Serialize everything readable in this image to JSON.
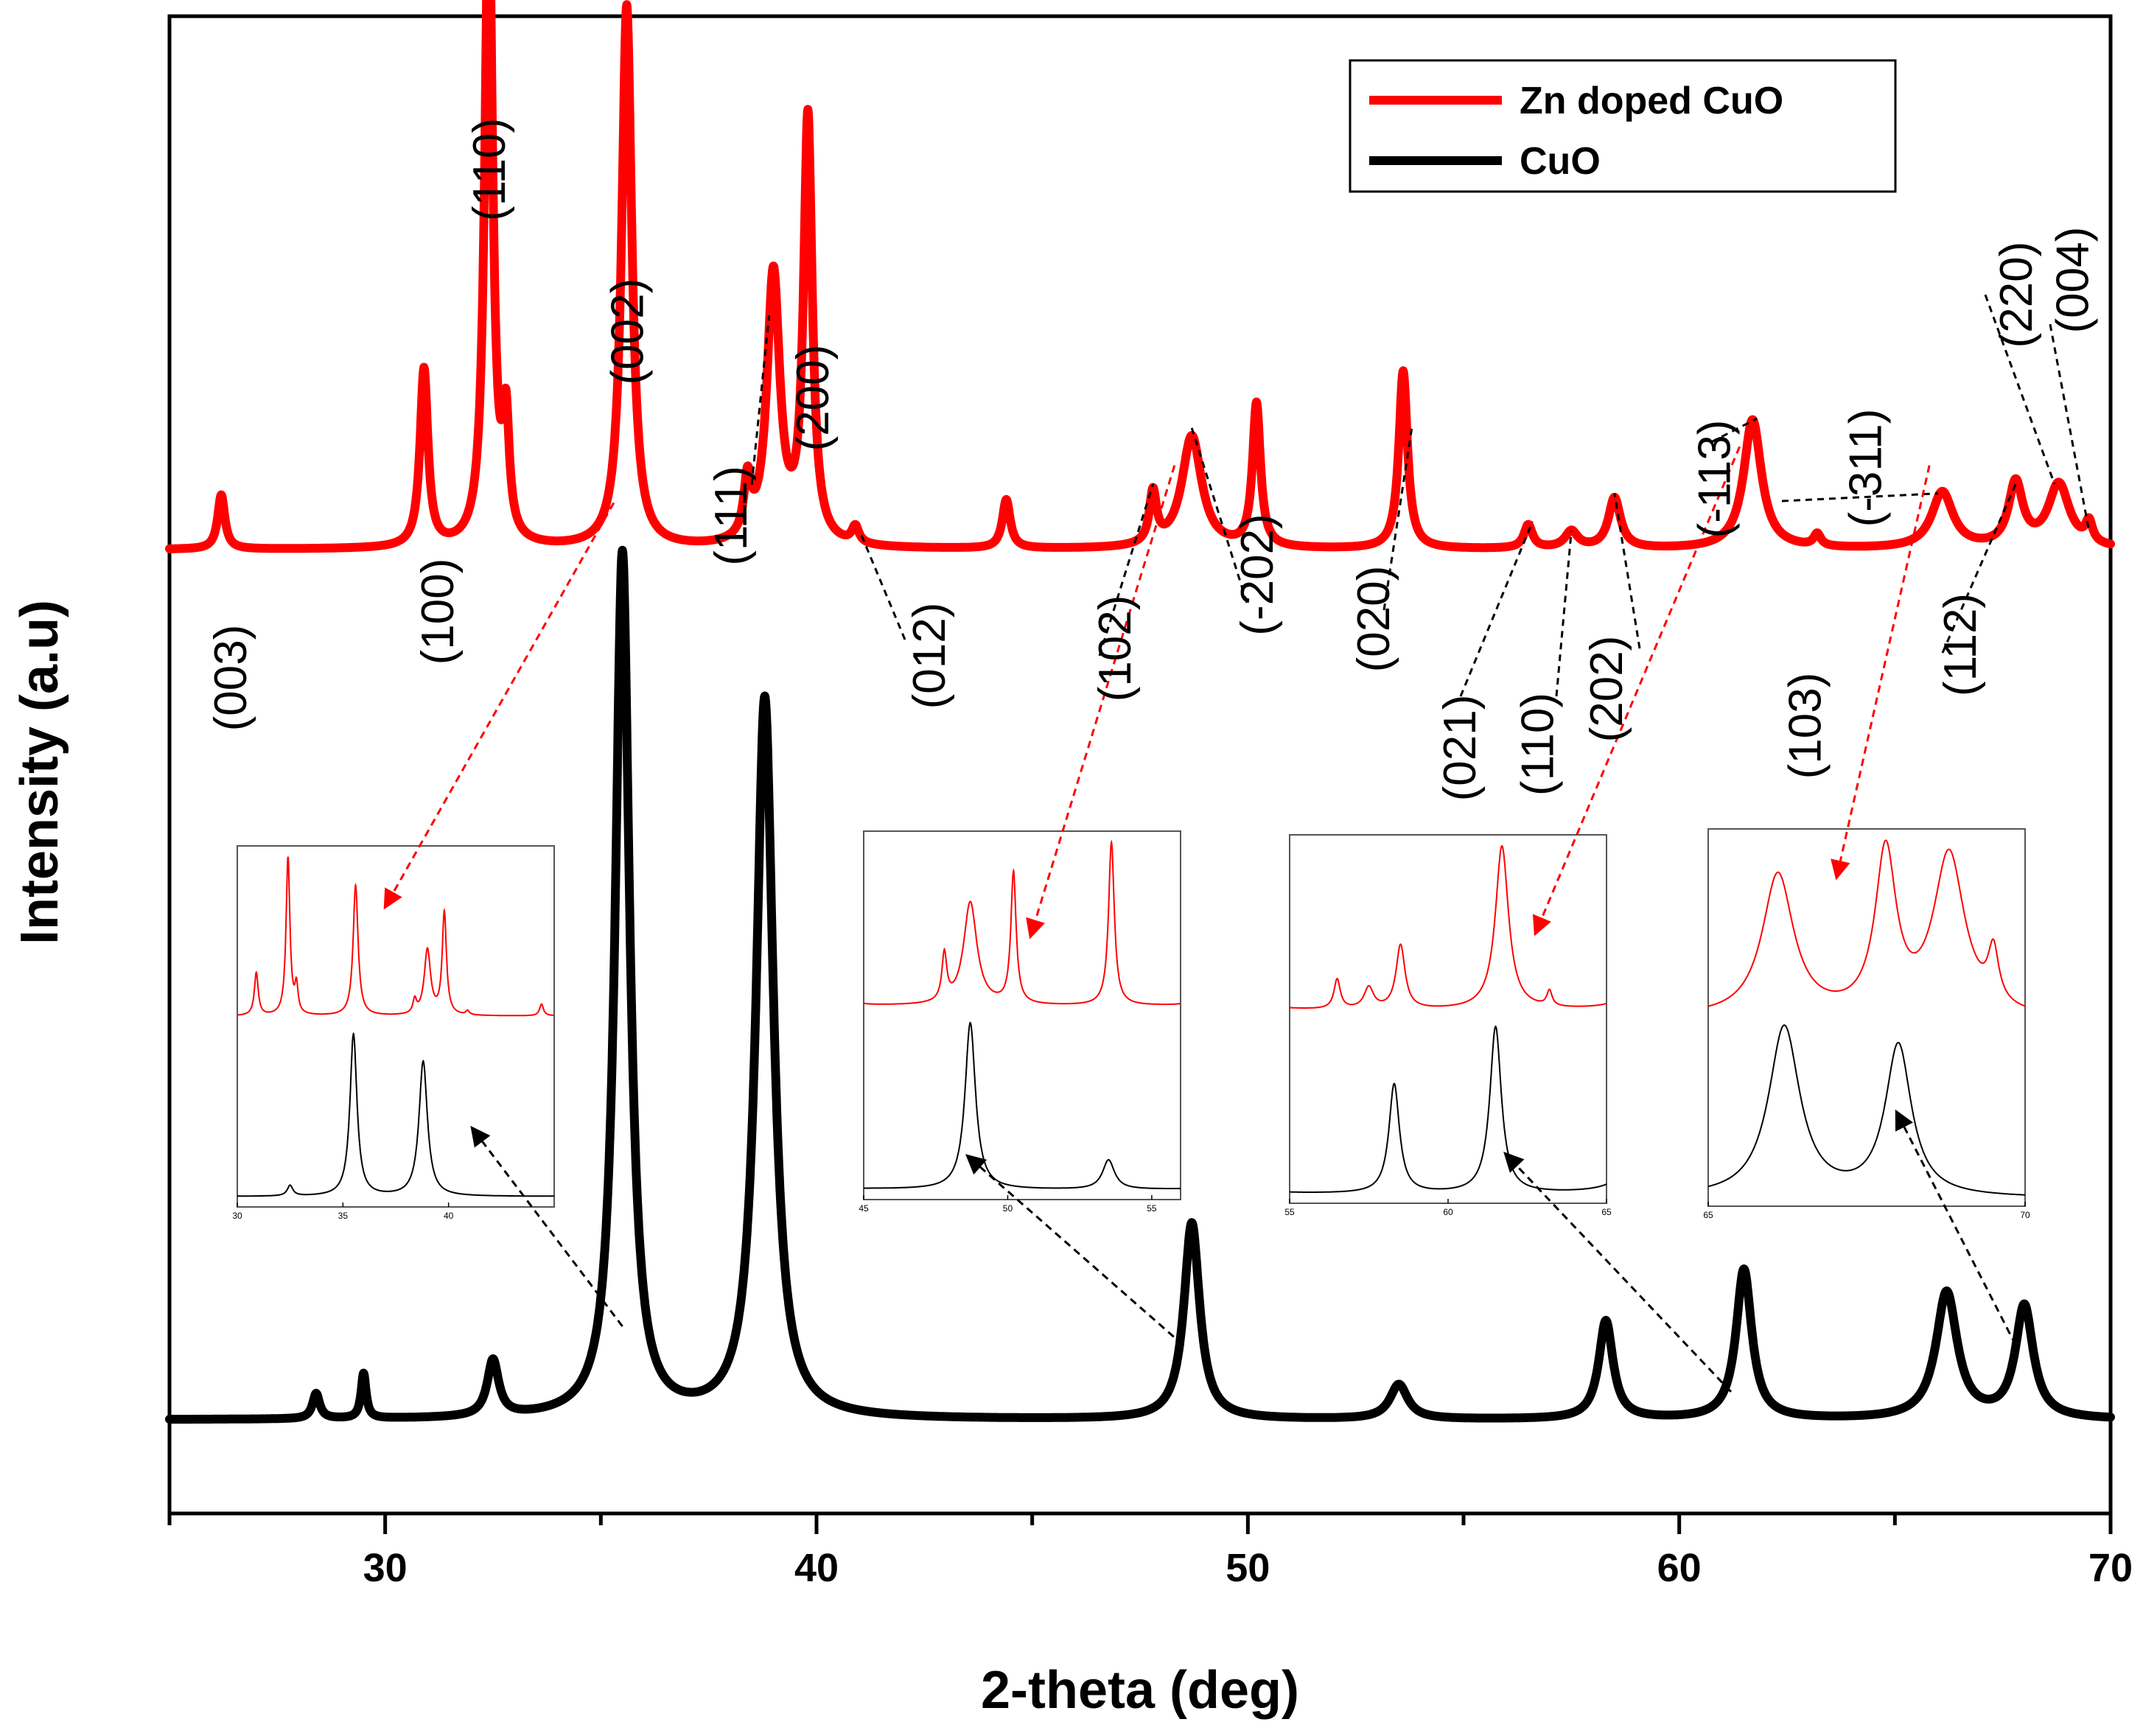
{
  "chart_data": {
    "type": "line",
    "xlabel": "2-theta (deg)",
    "ylabel": "Intensity (a.u)",
    "xlim": [
      25,
      70
    ],
    "ylim": [
      0,
      1.6
    ],
    "x_ticks": [
      30,
      40,
      50,
      60,
      70
    ],
    "y_ticks_labeled": false,
    "grid": false,
    "legend_position": "top-right",
    "colors": {
      "zn": "#ff0000",
      "cuo": "#000000",
      "axis": "#000000"
    },
    "series": [
      {
        "name": "Zn doped CuO",
        "color": "#ff0000",
        "baseline": 1.03,
        "peaks": [
          {
            "x": 26.2,
            "h": 0.058,
            "w": 0.1
          },
          {
            "x": 30.9,
            "h": 0.19,
            "w": 0.11
          },
          {
            "x": 32.4,
            "h": 0.7,
            "w": 0.11
          },
          {
            "x": 32.8,
            "h": 0.12,
            "w": 0.09
          },
          {
            "x": 35.6,
            "h": 0.58,
            "w": 0.14
          },
          {
            "x": 38.4,
            "h": 0.06,
            "w": 0.1
          },
          {
            "x": 39.0,
            "h": 0.29,
            "w": 0.18
          },
          {
            "x": 39.8,
            "h": 0.455,
            "w": 0.12
          },
          {
            "x": 40.9,
            "h": 0.018,
            "w": 0.1
          },
          {
            "x": 44.4,
            "h": 0.052,
            "w": 0.11
          },
          {
            "x": 47.8,
            "h": 0.055,
            "w": 0.1
          },
          {
            "x": 48.7,
            "h": 0.12,
            "w": 0.28
          },
          {
            "x": 50.2,
            "h": 0.153,
            "w": 0.11
          },
          {
            "x": 53.6,
            "h": 0.19,
            "w": 0.12
          },
          {
            "x": 56.5,
            "h": 0.025,
            "w": 0.12
          },
          {
            "x": 57.5,
            "h": 0.018,
            "w": 0.18
          },
          {
            "x": 58.5,
            "h": 0.054,
            "w": 0.17
          },
          {
            "x": 61.7,
            "h": 0.138,
            "w": 0.25
          },
          {
            "x": 63.2,
            "h": 0.013,
            "w": 0.1
          },
          {
            "x": 66.1,
            "h": 0.06,
            "w": 0.3
          },
          {
            "x": 67.8,
            "h": 0.068,
            "w": 0.2
          },
          {
            "x": 68.8,
            "h": 0.068,
            "w": 0.3
          },
          {
            "x": 69.5,
            "h": 0.022,
            "w": 0.1
          }
        ]
      },
      {
        "name": "CuO",
        "color": "#000000",
        "baseline": 0.1,
        "peaks": [
          {
            "x": 28.4,
            "h": 0.027,
            "w": 0.1
          },
          {
            "x": 29.5,
            "h": 0.048,
            "w": 0.07
          },
          {
            "x": 32.5,
            "h": 0.06,
            "w": 0.16
          },
          {
            "x": 35.5,
            "h": 0.925,
            "w": 0.2
          },
          {
            "x": 38.8,
            "h": 0.77,
            "w": 0.24
          },
          {
            "x": 48.7,
            "h": 0.21,
            "w": 0.22
          },
          {
            "x": 53.5,
            "h": 0.037,
            "w": 0.25
          },
          {
            "x": 58.3,
            "h": 0.105,
            "w": 0.2
          },
          {
            "x": 61.5,
            "h": 0.16,
            "w": 0.22
          },
          {
            "x": 66.2,
            "h": 0.135,
            "w": 0.3
          },
          {
            "x": 68.0,
            "h": 0.12,
            "w": 0.25
          }
        ]
      }
    ],
    "peak_labels": [
      {
        "text": "(003)",
        "x": 26.4
      },
      {
        "text": "(100)",
        "x": 31.2
      },
      {
        "text": "(110)",
        "x": 32.4
      },
      {
        "text": "(002)",
        "x": 35.6
      },
      {
        "text": "(111)",
        "x": 38.0
      },
      {
        "text": "(200)",
        "x": 39.9
      },
      {
        "text": "(012)",
        "x": 42.6
      },
      {
        "text": "(102)",
        "x": 46.9
      },
      {
        "text": "(-202)",
        "x": 50.2
      },
      {
        "text": "(020)",
        "x": 52.9
      },
      {
        "text": "(021)",
        "x": 54.9
      },
      {
        "text": "(110)",
        "x": 56.7
      },
      {
        "text": "(202)",
        "x": 58.3
      },
      {
        "text": "(-113)",
        "x": 60.8
      },
      {
        "text": "(103)",
        "x": 62.9
      },
      {
        "text": "(-311)",
        "x": 64.3
      },
      {
        "text": "(112)",
        "x": 66.5
      },
      {
        "text": "(220)",
        "x": 67.8
      },
      {
        "text": "(004)",
        "x": 69.1
      }
    ],
    "insets": [
      {
        "name": "inset-30-45",
        "xlim": [
          30,
          45
        ],
        "ticks": [
          "30",
          "35",
          "40"
        ]
      },
      {
        "name": "inset-45-56",
        "xlim": [
          45,
          56
        ],
        "ticks": [
          "45",
          "50",
          "55"
        ]
      },
      {
        "name": "inset-55-65",
        "xlim": [
          55,
          65
        ],
        "ticks": [
          "55",
          "60",
          "65"
        ]
      },
      {
        "name": "inset-65-70",
        "xlim": [
          65,
          70
        ],
        "ticks": [
          "65",
          "70"
        ]
      }
    ]
  }
}
